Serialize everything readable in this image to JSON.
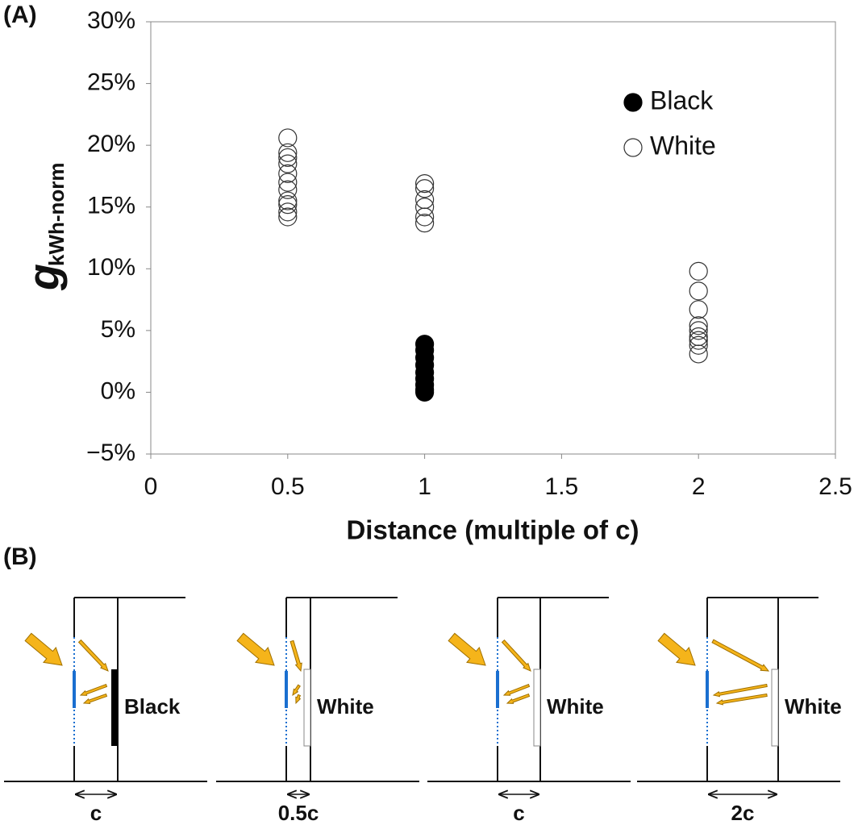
{
  "panel_a_label": "(A)",
  "chart_data": {
    "type": "scatter",
    "xlabel": "Distance (multiple of c)",
    "ylabel": "g",
    "ylabel_subscript": "kWh-norm",
    "xlim": [
      0,
      2.5
    ],
    "xticks": [
      0,
      0.5,
      1,
      1.5,
      2,
      2.5
    ],
    "ylim": [
      -5,
      30
    ],
    "yticks": [
      {
        "value": -5,
        "label": "−5%"
      },
      {
        "value": 0,
        "label": "0%"
      },
      {
        "value": 5,
        "label": "5%"
      },
      {
        "value": 10,
        "label": "10%"
      },
      {
        "value": 15,
        "label": "15%"
      },
      {
        "value": 20,
        "label": "20%"
      },
      {
        "value": 25,
        "label": "25%"
      },
      {
        "value": 30,
        "label": "30%"
      }
    ],
    "legend": "upper right",
    "series": [
      {
        "name": "Black",
        "color": "#000000",
        "filled": true,
        "x": [
          1,
          1,
          1,
          1,
          1,
          1,
          1,
          1,
          1
        ],
        "values": [
          3.9,
          3.4,
          2.8,
          2.2,
          1.6,
          1.1,
          0.6,
          0.2,
          0
        ]
      },
      {
        "name": "White",
        "color": "#333333",
        "filled": false,
        "x": [
          0.5,
          0.5,
          0.5,
          0.5,
          0.5,
          0.5,
          0.5,
          0.5,
          0.5,
          0.5,
          0.5,
          1,
          1,
          1,
          1,
          1,
          1,
          2,
          2,
          2,
          2,
          2,
          2,
          2,
          2,
          2
        ],
        "values": [
          20.6,
          19.4,
          19,
          18.5,
          17.7,
          17,
          16.4,
          15.5,
          15.2,
          14.6,
          14.2,
          16.9,
          16.5,
          15.6,
          15,
          14.2,
          13.7,
          9.8,
          8.2,
          6.7,
          5.4,
          5,
          4.5,
          4.2,
          3.8,
          3.1
        ]
      }
    ]
  },
  "panel_b": {
    "label": "(B)",
    "diagrams": [
      {
        "surface": "Black",
        "distance": "c"
      },
      {
        "surface": "White",
        "distance": "0.5c"
      },
      {
        "surface": "White",
        "distance": "c"
      },
      {
        "surface": "White",
        "distance": "2c"
      }
    ]
  }
}
